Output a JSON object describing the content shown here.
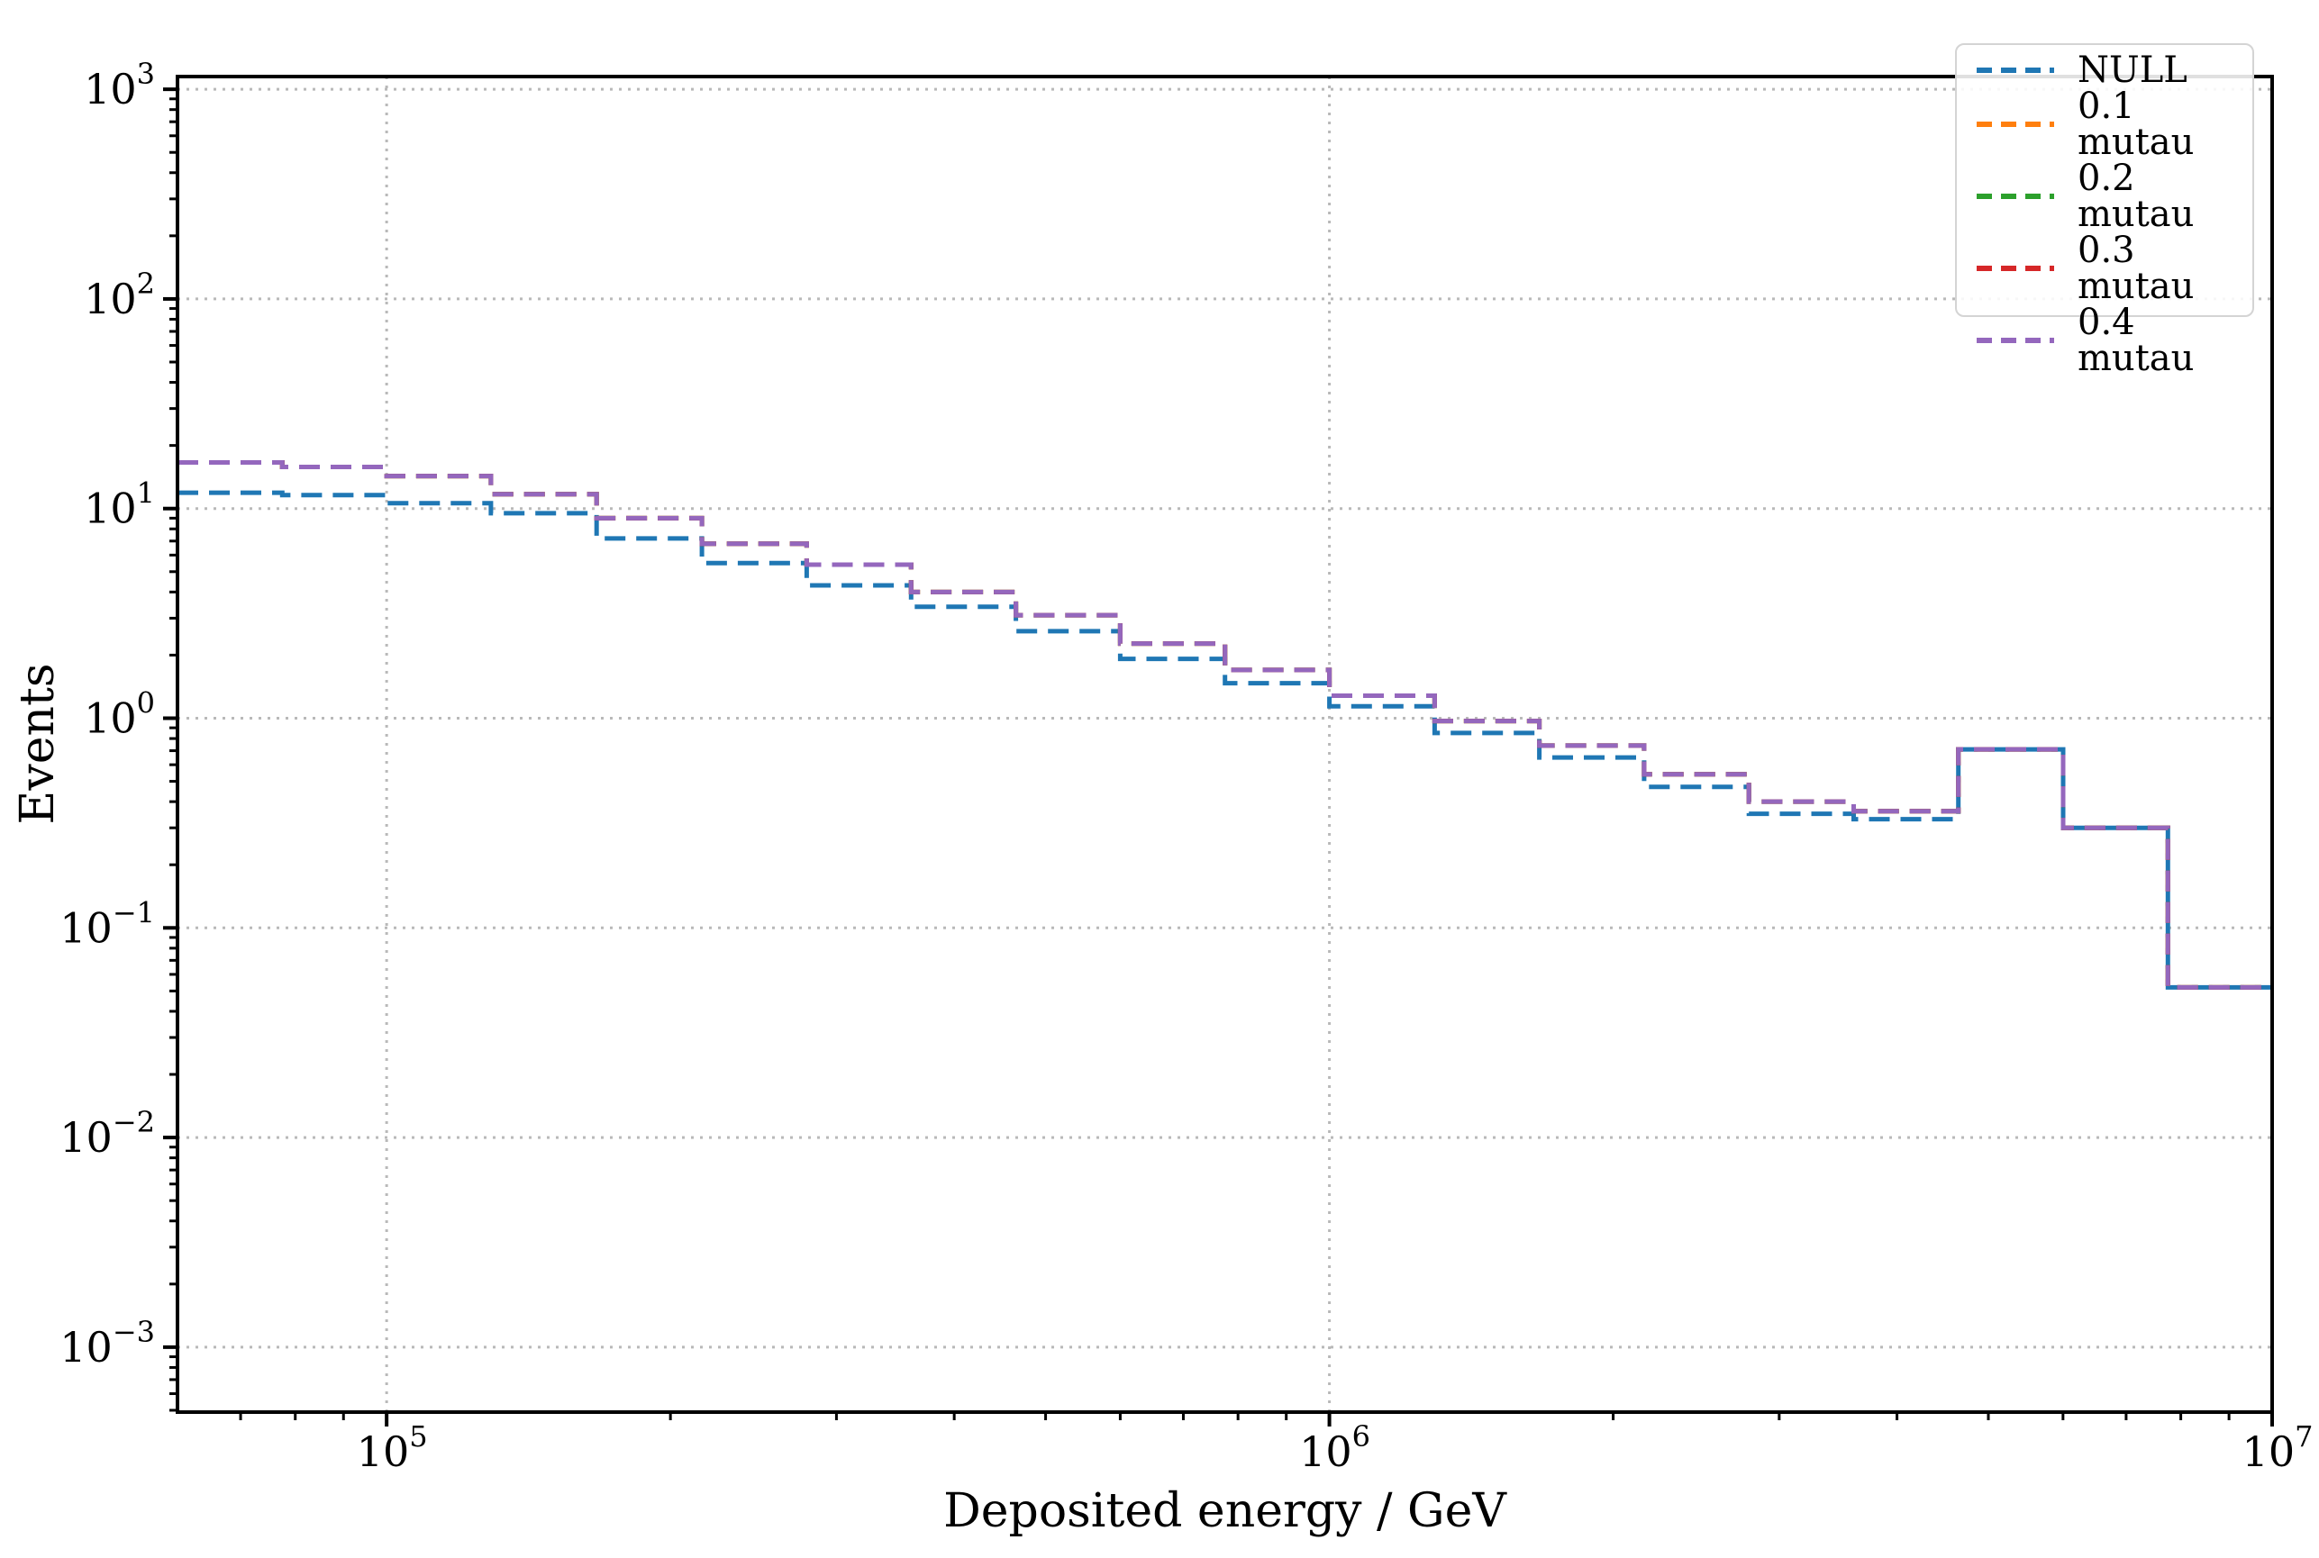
{
  "figure": {
    "background": "#ffffff",
    "text_color": "#000000",
    "spine_color": "#000000",
    "grid_color": "#b9b9b9"
  },
  "chart_data": {
    "type": "line",
    "subtype": "step-histogram",
    "title": "",
    "xlabel": "Deposited energy / GeV",
    "ylabel": "Events",
    "xscale": "log",
    "yscale": "log",
    "xlim": [
      60000,
      10000000
    ],
    "ylim": [
      0.00049,
      1150
    ],
    "x_tick_exponents": [
      5,
      6,
      7
    ],
    "y_tick_exponents": [
      3,
      2,
      1,
      0,
      -1,
      -2,
      -3
    ],
    "grid": {
      "which": "major",
      "style": "dotted",
      "color": "#b9b9b9"
    },
    "legend": {
      "position": "upper right",
      "items": [
        "NULL",
        "0.1 mutau",
        "0.2 mutau",
        "0.3 mutau",
        "0.4 mutau"
      ]
    },
    "bin_edges_gev": [
      60000,
      77500,
      100000,
      129000,
      167000,
      216000,
      279000,
      360000,
      465000,
      600000,
      775000,
      1000000,
      1293000,
      1670000,
      2157000,
      2786000,
      3598000,
      4647000,
      6002000,
      7752000,
      10000000
    ],
    "series": [
      {
        "name": "NULL",
        "color": "#1f77b4",
        "linestyle": "dashed",
        "values": [
          11.9,
          11.6,
          10.6,
          9.5,
          7.2,
          5.5,
          4.3,
          3.4,
          2.6,
          1.92,
          1.47,
          1.14,
          0.85,
          0.65,
          0.47,
          0.35,
          0.33,
          0.71,
          0.3,
          0.052
        ]
      },
      {
        "name": "0.1 mutau",
        "color": "#ff7f0e",
        "linestyle": "dashed",
        "values": [
          16.6,
          15.8,
          14.3,
          11.7,
          9.0,
          6.8,
          5.4,
          4.0,
          3.1,
          2.27,
          1.7,
          1.28,
          0.97,
          0.74,
          0.54,
          0.4,
          0.36,
          0.71,
          0.3,
          0.052
        ]
      },
      {
        "name": "0.2 mutau",
        "color": "#2ca02c",
        "linestyle": "dashed",
        "values": [
          16.6,
          15.8,
          14.3,
          11.7,
          9.0,
          6.8,
          5.4,
          4.0,
          3.1,
          2.27,
          1.7,
          1.28,
          0.97,
          0.74,
          0.54,
          0.4,
          0.36,
          0.71,
          0.3,
          0.052
        ]
      },
      {
        "name": "0.3 mutau",
        "color": "#d62728",
        "linestyle": "dashed",
        "values": [
          16.6,
          15.8,
          14.3,
          11.7,
          9.0,
          6.8,
          5.4,
          4.0,
          3.1,
          2.27,
          1.7,
          1.28,
          0.97,
          0.74,
          0.54,
          0.4,
          0.36,
          0.71,
          0.3,
          0.052
        ]
      },
      {
        "name": "0.4 mutau",
        "color": "#9467bd",
        "linestyle": "dashed",
        "values": [
          16.6,
          15.8,
          14.3,
          11.7,
          9.0,
          6.8,
          5.4,
          4.0,
          3.1,
          2.27,
          1.7,
          1.28,
          0.97,
          0.74,
          0.54,
          0.4,
          0.36,
          0.71,
          0.3,
          0.052
        ]
      }
    ]
  }
}
